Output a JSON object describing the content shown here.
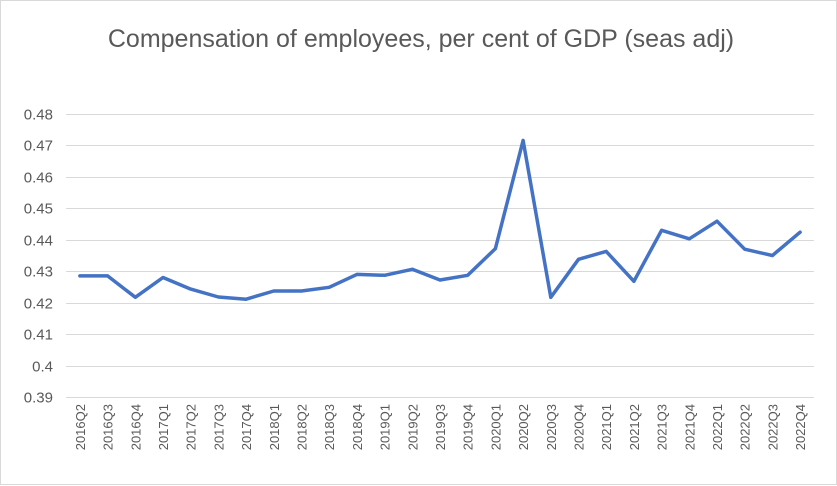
{
  "chart_data": {
    "type": "line",
    "title": "Compensation of employees, per cent of GDP (seas adj)",
    "xlabel": "",
    "ylabel": "",
    "categories": [
      "2016Q2",
      "2016Q3",
      "2016Q4",
      "2017Q1",
      "2017Q2",
      "2017Q3",
      "2017Q4",
      "2018Q1",
      "2018Q2",
      "2018Q3",
      "2018Q4",
      "2019Q1",
      "2019Q2",
      "2019Q3",
      "2019Q4",
      "2020Q1",
      "2020Q2",
      "2020Q3",
      "2020Q4",
      "2021Q1",
      "2021Q2",
      "2021Q3",
      "2021Q4",
      "2022Q1",
      "2022Q2",
      "2022Q3",
      "2022Q4"
    ],
    "series": [
      {
        "values": [
          0.4285,
          0.4285,
          0.4217,
          0.428,
          0.4243,
          0.4218,
          0.4211,
          0.4237,
          0.4237,
          0.4249,
          0.429,
          0.4287,
          0.4306,
          0.4272,
          0.4287,
          0.4372,
          0.4716,
          0.4217,
          0.4338,
          0.4363,
          0.4268,
          0.443,
          0.4403,
          0.4459,
          0.437,
          0.435,
          0.4424
        ],
        "color": "#4472c4"
      }
    ],
    "yticks": [
      "0.39",
      "0.4",
      "0.41",
      "0.42",
      "0.43",
      "0.44",
      "0.45",
      "0.46",
      "0.47",
      "0.48"
    ],
    "ylim": [
      0.39,
      0.48
    ],
    "grid": true,
    "legend": "none"
  }
}
